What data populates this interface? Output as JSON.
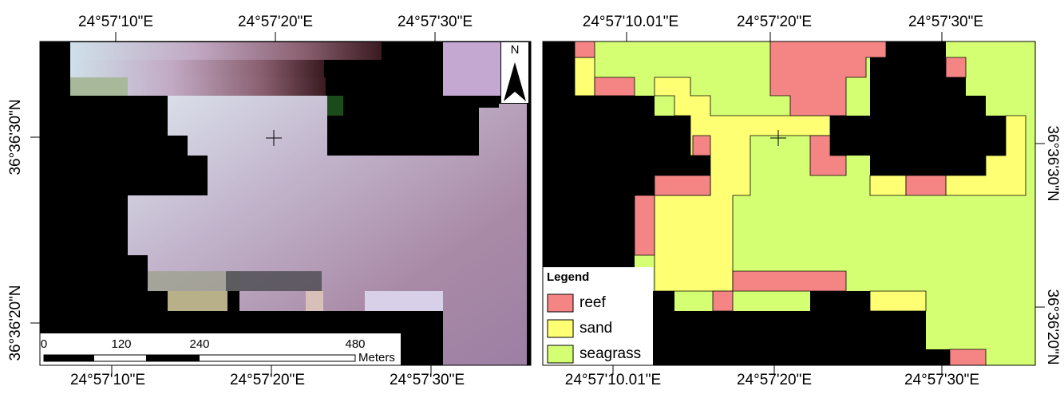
{
  "left_map": {
    "top_labels": [
      "24°57'10\"E",
      "24°57'20\"E",
      "24°57'30\"E"
    ],
    "bottom_labels": [
      "24°57'10\"E",
      "24°57'20\"E",
      "24°57'30\"E"
    ],
    "side_labels": [
      "36°36'30\"N",
      "36°36'20\"N"
    ],
    "north": "N",
    "scale_bar": {
      "labels": [
        "0",
        "120",
        "240",
        "480"
      ],
      "unit": "Meters"
    }
  },
  "right_map": {
    "top_labels": [
      "24°57'10.01\"E",
      "24°57'20\"E",
      "24°57'30\"E"
    ],
    "bottom_labels": [
      "24°57'10.01\"E",
      "24°57'20\"E",
      "24°57'30\"E"
    ],
    "side_labels": [
      "36°36'30\"N",
      "36°36'20\"N"
    ],
    "legend": {
      "title": "Legend",
      "items": [
        {
          "label": "reef",
          "color": "#f58585"
        },
        {
          "label": "sand",
          "color": "#ffff73"
        },
        {
          "label": "seagrass",
          "color": "#d4ff73"
        }
      ]
    }
  }
}
